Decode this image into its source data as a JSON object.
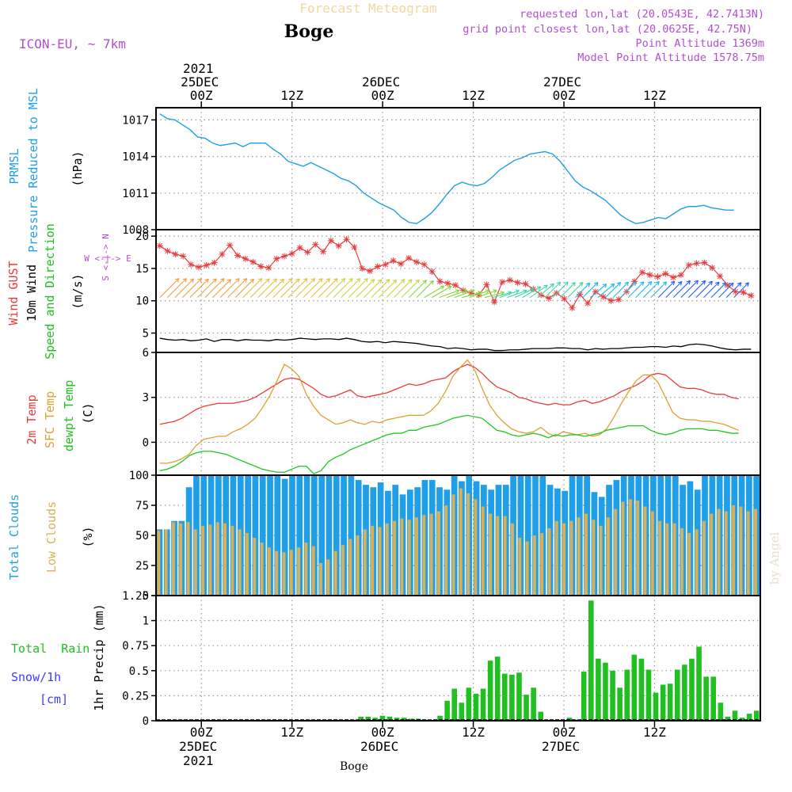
{
  "header": {
    "title": "Forecast Meteogram",
    "location": "Boge",
    "model": "ICON-EU, ~ 7km",
    "requested": "requested lon,lat (20.0543E, 42.7413N)",
    "grid_point": "grid point closest lon,lat (20.0625E, 42.75N)",
    "point_alt": "Point Altitude 1369m",
    "model_alt": "Model Point Altitude 1578.75m",
    "footer_location": "Boge",
    "watermark": "by Angel"
  },
  "colors": {
    "pressure": "#1e9fe8",
    "gust": "#e83c3c",
    "wind": "#000000",
    "t2m": "#e83c3c",
    "sfc": "#e0a030",
    "dewpt": "#20c820",
    "total_clouds": "#1e9fe8",
    "low_clouds": "#d9b05a",
    "rain": "#20c020",
    "snow": "#3c3cff",
    "direction": "#b050d0"
  },
  "time_axis": {
    "top_ticks": [
      {
        "l1": "2021",
        "l2": "25DEC",
        "l3": "00Z",
        "h": 6
      },
      {
        "l1": "",
        "l2": "",
        "l3": "12Z",
        "h": 18
      },
      {
        "l1": "",
        "l2": "26DEC",
        "l3": "00Z",
        "h": 30
      },
      {
        "l1": "",
        "l2": "",
        "l3": "12Z",
        "h": 42
      },
      {
        "l1": "",
        "l2": "27DEC",
        "l3": "00Z",
        "h": 54
      },
      {
        "l1": "",
        "l2": "",
        "l3": "12Z",
        "h": 66
      }
    ],
    "bottom_ticks": [
      {
        "l1": "00Z",
        "l2": "25DEC",
        "l3": "2021",
        "h": 6
      },
      {
        "l1": "12Z",
        "l2": "",
        "l3": "",
        "h": 18
      },
      {
        "l1": "00Z",
        "l2": "26DEC",
        "l3": "",
        "h": 30
      },
      {
        "l1": "12Z",
        "l2": "",
        "l3": "",
        "h": 42
      },
      {
        "l1": "00Z",
        "l2": "27DEC",
        "l3": "",
        "h": 54
      },
      {
        "l1": "12Z",
        "l2": "",
        "l3": "",
        "h": 66
      }
    ]
  },
  "panels": {
    "pressure": {
      "label1": "PRMSL",
      "label2": "Pressure Reduced to MSL",
      "unit": "(hPa)"
    },
    "wind": {
      "label1": "Wind GUST",
      "label2": "10m Wind",
      "label3": "Speed and Direction",
      "unit": "(m/s)",
      "compass": "W <-|-> E",
      "compass_v": "S <-|-> N"
    },
    "temp": {
      "label1": "2m Temp",
      "label2": "SFC Temp",
      "label3": "dewpt Temp",
      "unit": "(C)"
    },
    "clouds": {
      "label1": "Total Clouds",
      "label2": "Low Clouds",
      "unit": "(%)"
    },
    "precip": {
      "label1": "Total  Rain",
      "label2": "Snow/1h",
      "label3": "[cm]",
      "unit": "1hr Precip (mm)"
    }
  },
  "chart_data": [
    {
      "type": "line",
      "name": "pressure",
      "series": [
        {
          "name": "PRMSL",
          "values": [
            1017.5,
            1017.1,
            1017.0,
            1016.6,
            1016.2,
            1015.6,
            1015.5,
            1015.1,
            1014.9,
            1015.0,
            1015.1,
            1014.8,
            1015.1,
            1015.1,
            1015.1,
            1014.6,
            1014.2,
            1013.6,
            1013.4,
            1013.2,
            1013.5,
            1013.2,
            1012.9,
            1012.6,
            1012.2,
            1012.0,
            1011.6,
            1011.0,
            1010.6,
            1010.2,
            1009.9,
            1009.6,
            1009.0,
            1008.6,
            1008.5,
            1008.9,
            1009.4,
            1010.1,
            1010.9,
            1011.6,
            1011.9,
            1011.7,
            1011.6,
            1011.8,
            1012.3,
            1012.9,
            1013.3,
            1013.7,
            1013.9,
            1014.2,
            1014.3,
            1014.4,
            1014.2,
            1013.6,
            1012.8,
            1012.0,
            1011.5,
            1011.2,
            1010.8,
            1010.4,
            1009.8,
            1009.2,
            1008.8,
            1008.5,
            1008.6,
            1008.8,
            1009.0,
            1008.9,
            1009.3,
            1009.7,
            1009.9,
            1009.9,
            1010.0,
            1009.8,
            1009.7,
            1009.6,
            1009.6
          ]
        }
      ],
      "ylim": [
        1008,
        1018
      ],
      "yticks": [
        "1008",
        "1011",
        "1014",
        "1017"
      ]
    },
    {
      "type": "line",
      "name": "wind",
      "series": [
        {
          "name": "Wind GUST",
          "values": [
            18.5,
            17.7,
            17.2,
            16.9,
            15.6,
            15.2,
            15.5,
            15.9,
            17.2,
            18.6,
            17.0,
            16.5,
            16.0,
            15.3,
            15.1,
            16.5,
            16.9,
            17.3,
            18.2,
            17.5,
            18.7,
            17.6,
            19.3,
            18.5,
            19.5,
            18.3,
            15.0,
            14.6,
            15.3,
            15.6,
            16.2,
            15.7,
            16.6,
            16.0,
            15.6,
            14.5,
            13.0,
            12.7,
            12.4,
            11.6,
            11.2,
            10.9,
            12.5,
            9.8,
            12.9,
            13.2,
            12.8,
            12.6,
            11.8,
            10.9,
            10.4,
            11.2,
            10.3,
            8.9,
            11.0,
            9.6,
            11.4,
            10.6,
            10.0,
            10.2,
            11.4,
            13.0,
            14.4,
            14.0,
            13.7,
            14.2,
            13.6,
            14.0,
            15.5,
            15.8,
            15.9,
            15.1,
            13.8,
            12.4,
            11.4,
            11.3,
            10.8
          ]
        },
        {
          "name": "10m Wind",
          "values": [
            4.2,
            4.0,
            3.9,
            4.0,
            3.8,
            3.9,
            4.1,
            3.7,
            4.0,
            4.0,
            3.8,
            4.0,
            3.9,
            3.9,
            3.8,
            4.0,
            3.9,
            4.0,
            4.2,
            4.1,
            4.0,
            4.1,
            4.1,
            4.0,
            4.2,
            4.0,
            3.7,
            3.6,
            3.7,
            3.5,
            3.7,
            3.6,
            3.5,
            3.4,
            3.2,
            3.0,
            2.9,
            2.6,
            2.7,
            2.6,
            2.4,
            2.5,
            2.5,
            2.3,
            2.3,
            2.4,
            2.4,
            2.5,
            2.6,
            2.6,
            2.6,
            2.7,
            2.7,
            2.6,
            2.6,
            2.4,
            2.6,
            2.5,
            2.6,
            2.6,
            2.7,
            2.8,
            2.8,
            2.9,
            2.9,
            2.8,
            3.0,
            2.9,
            3.2,
            3.3,
            3.2,
            3.0,
            2.7,
            2.5,
            2.4,
            2.5,
            2.5
          ]
        }
      ],
      "direction_deg": [
        225,
        225,
        225,
        225,
        225,
        225,
        225,
        225,
        225,
        225,
        225,
        225,
        225,
        225,
        225,
        225,
        225,
        225,
        225,
        225,
        225,
        225,
        225,
        225,
        225,
        225,
        225,
        225,
        225,
        225,
        225,
        225,
        225,
        225,
        225,
        240,
        240,
        250,
        250,
        250,
        255,
        250,
        250,
        255,
        255,
        250,
        250,
        245,
        240,
        235,
        230,
        225,
        225,
        225,
        225,
        225,
        225,
        230,
        230,
        225,
        225,
        225,
        225,
        225,
        225,
        225,
        225,
        225,
        225,
        225,
        225,
        225,
        225,
        225,
        225,
        225,
        225
      ],
      "ylim": [
        2,
        21
      ],
      "yticks": [
        "5",
        "10",
        "15",
        "20"
      ]
    },
    {
      "type": "line",
      "name": "temperature",
      "series": [
        {
          "name": "2m Temp",
          "values": [
            1.2,
            1.3,
            1.4,
            1.6,
            1.9,
            2.2,
            2.4,
            2.5,
            2.6,
            2.6,
            2.6,
            2.7,
            2.8,
            3.0,
            3.3,
            3.6,
            3.9,
            4.2,
            4.3,
            4.2,
            3.9,
            3.6,
            3.2,
            3.0,
            3.1,
            3.3,
            3.5,
            3.1,
            3.0,
            3.1,
            3.2,
            3.3,
            3.5,
            3.7,
            3.9,
            3.8,
            3.9,
            4.1,
            4.2,
            4.3,
            4.7,
            5.0,
            5.2,
            5.0,
            4.6,
            4.1,
            3.7,
            3.5,
            3.3,
            3.0,
            2.9,
            2.7,
            2.6,
            2.5,
            2.6,
            2.5,
            2.5,
            2.7,
            2.8,
            2.6,
            2.7,
            2.9,
            3.1,
            3.4,
            3.6,
            3.8,
            4.1,
            4.5,
            4.6,
            4.5,
            4.1,
            3.7,
            3.6,
            3.6,
            3.5,
            3.3,
            3.2,
            3.2,
            3.0,
            2.9
          ]
        },
        {
          "name": "SFC Temp",
          "values": [
            -1.4,
            -1.4,
            -1.3,
            -1.1,
            -0.8,
            -0.2,
            0.2,
            0.3,
            0.4,
            0.4,
            0.7,
            0.9,
            1.2,
            1.6,
            2.3,
            3.1,
            4.1,
            5.2,
            4.9,
            4.4,
            3.2,
            2.4,
            1.8,
            1.5,
            1.2,
            1.3,
            1.5,
            1.3,
            1.2,
            1.4,
            1.3,
            1.5,
            1.6,
            1.7,
            1.8,
            1.8,
            1.8,
            2.1,
            2.6,
            3.4,
            4.4,
            5.0,
            5.5,
            4.8,
            3.6,
            2.5,
            1.8,
            1.3,
            0.9,
            0.7,
            0.6,
            0.7,
            1.0,
            0.6,
            0.4,
            0.7,
            0.6,
            0.5,
            0.6,
            0.4,
            0.5,
            0.9,
            1.7,
            2.6,
            3.4,
            4.1,
            4.5,
            4.5,
            4.0,
            3.0,
            2.0,
            1.6,
            1.5,
            1.5,
            1.4,
            1.4,
            1.3,
            1.2,
            1.0,
            0.8
          ]
        },
        {
          "name": "dewpt Temp",
          "values": [
            -1.9,
            -1.8,
            -1.6,
            -1.3,
            -0.9,
            -0.7,
            -0.6,
            -0.6,
            -0.7,
            -0.8,
            -1.0,
            -1.2,
            -1.4,
            -1.6,
            -1.8,
            -1.9,
            -2.0,
            -2.0,
            -1.8,
            -1.6,
            -1.6,
            -2.1,
            -1.9,
            -1.3,
            -1.0,
            -0.8,
            -0.5,
            -0.3,
            -0.1,
            0.1,
            0.3,
            0.5,
            0.6,
            0.6,
            0.8,
            0.8,
            1.0,
            1.1,
            1.2,
            1.4,
            1.6,
            1.7,
            1.8,
            1.7,
            1.6,
            1.2,
            0.8,
            0.7,
            0.5,
            0.4,
            0.5,
            0.6,
            0.5,
            0.3,
            0.5,
            0.4,
            0.5,
            0.5,
            0.4,
            0.5,
            0.6,
            0.8,
            0.9,
            1.0,
            1.1,
            1.1,
            1.1,
            0.8,
            0.6,
            0.5,
            0.6,
            0.8,
            0.9,
            0.9,
            0.9,
            0.8,
            0.8,
            0.7,
            0.6,
            0.6
          ]
        }
      ],
      "ylim": [
        -2.2,
        6
      ],
      "yticks": [
        "0",
        "3",
        "6"
      ]
    },
    {
      "type": "bar",
      "name": "clouds",
      "series": [
        {
          "name": "Total Clouds",
          "values": [
            55,
            55,
            62,
            62,
            90,
            100,
            100,
            100,
            100,
            100,
            100,
            100,
            100,
            100,
            100,
            100,
            100,
            97,
            100,
            100,
            100,
            100,
            100,
            100,
            100,
            100,
            100,
            96,
            92,
            90,
            94,
            87,
            92,
            84,
            88,
            90,
            96,
            96,
            90,
            88,
            100,
            95,
            100,
            95,
            92,
            88,
            92,
            92,
            100,
            100,
            100,
            100,
            100,
            92,
            89,
            87,
            100,
            100,
            100,
            86,
            82,
            92,
            96,
            100,
            100,
            100,
            100,
            100,
            100,
            100,
            100,
            92,
            95,
            88,
            100,
            100,
            100,
            100,
            100,
            100,
            100,
            100
          ]
        },
        {
          "name": "Low Clouds",
          "values": [
            54,
            55,
            61,
            60,
            61,
            55,
            58,
            59,
            61,
            60,
            58,
            55,
            52,
            48,
            44,
            40,
            37,
            36,
            38,
            40,
            44,
            41,
            27,
            30,
            37,
            42,
            47,
            50,
            55,
            58,
            57,
            60,
            62,
            64,
            63,
            65,
            67,
            68,
            70,
            75,
            84,
            89,
            85,
            80,
            74,
            68,
            66,
            66,
            60,
            48,
            45,
            50,
            52,
            56,
            62,
            60,
            62,
            65,
            68,
            63,
            58,
            65,
            72,
            78,
            80,
            79,
            74,
            70,
            62,
            60,
            60,
            56,
            52,
            55,
            62,
            68,
            72,
            70,
            75,
            74,
            70,
            72
          ]
        }
      ],
      "ylim": [
        0,
        100
      ],
      "yticks": [
        "0",
        "25",
        "50",
        "75",
        "100"
      ]
    },
    {
      "type": "bar",
      "name": "precipitation",
      "series": [
        {
          "name": "Total Rain",
          "values": [
            0,
            0,
            0,
            0.01,
            0.01,
            0,
            0,
            0,
            0,
            0,
            0,
            0,
            0,
            0,
            0,
            0,
            0,
            0,
            0,
            0,
            0,
            0,
            0,
            0,
            0,
            0,
            0,
            0,
            0.04,
            0.04,
            0.03,
            0.05,
            0.04,
            0.03,
            0.03,
            0.02,
            0.02,
            0.01,
            0,
            0.05,
            0.2,
            0.32,
            0.18,
            0.33,
            0.27,
            0.32,
            0.6,
            0.64,
            0.47,
            0.46,
            0.48,
            0.26,
            0.33,
            0.09,
            0,
            0,
            0.01,
            0.03,
            0,
            0.49,
            1.2,
            0.62,
            0.58,
            0.5,
            0.33,
            0.51,
            0.66,
            0.62,
            0.51,
            0.28,
            0.36,
            0.37,
            0.51,
            0.56,
            0.62,
            0.74,
            0.44,
            0.44,
            0.18,
            0.04,
            0.1,
            0.03,
            0.07,
            0.1
          ]
        },
        {
          "name": "Snow/1h",
          "values": [
            0,
            0,
            0,
            0,
            0,
            0,
            0,
            0,
            0,
            0,
            0,
            0,
            0,
            0,
            0,
            0,
            0,
            0,
            0,
            0,
            0,
            0,
            0,
            0,
            0,
            0,
            0,
            0,
            0,
            0,
            0,
            0,
            0,
            0,
            0,
            0,
            0,
            0,
            0,
            0,
            0,
            0,
            0,
            0,
            0,
            0,
            0,
            0,
            0,
            0,
            0,
            0,
            0,
            0,
            0,
            0,
            0,
            0,
            0,
            0,
            0,
            0,
            0,
            0,
            0,
            0,
            0,
            0,
            0,
            0,
            0,
            0,
            0,
            0,
            0,
            0,
            0,
            0,
            0,
            0,
            0,
            0,
            0,
            0
          ]
        }
      ],
      "ylim": [
        0,
        1.25
      ],
      "yticks": [
        "0",
        "0.25",
        "0.5",
        "0.75",
        "1",
        "1.25"
      ]
    }
  ]
}
